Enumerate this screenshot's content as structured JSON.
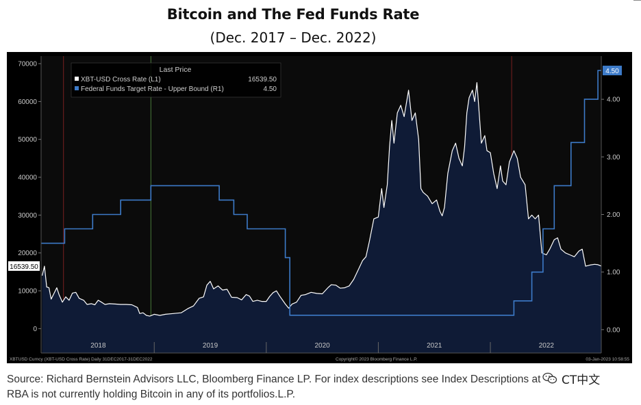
{
  "title": "Bitcoin and The Fed Funds Rate",
  "subtitle": "(Dec. 2017  –  Dec. 2022)",
  "source_text": "Source: Richard Bernstein Advisors LLC, Bloomberg Finance LP. For index descriptions see Index Descriptions at end of document. RBA is not currently holding Bitcoin in any of its portfolios.L.P.",
  "watermark_text": "CT中文",
  "colors": {
    "background": "#000000",
    "plot_bg": "#0b0b0b",
    "bitcoin_line": "#ffffff",
    "bitcoin_fill": "#0f1b36",
    "fed_line": "#3d7bc9",
    "axis_text": "#c8c8c8",
    "vline_red": "#7a2020",
    "vline_green": "#4a7a3a",
    "rlabel_bg": "#3d7bc9"
  },
  "chart_data": {
    "type": "line",
    "title": "Bitcoin and The Fed Funds Rate",
    "subtitle": "(Dec. 2017 – Dec. 2022)",
    "x_range": [
      2017.99,
      2022.99
    ],
    "x_tick_labels": [
      {
        "label": "2018",
        "x": 2018.5
      },
      {
        "label": "2019",
        "x": 2019.5
      },
      {
        "label": "2020",
        "x": 2020.5
      },
      {
        "label": "2021",
        "x": 2021.5
      },
      {
        "label": "2022",
        "x": 2022.5
      }
    ],
    "x_separators": [
      2019.0,
      2020.0,
      2021.0,
      2022.0
    ],
    "y_left": {
      "min": -3000,
      "max": 72000,
      "ticks": [
        0,
        10000,
        20000,
        30000,
        40000,
        50000,
        60000,
        70000
      ]
    },
    "y_right": {
      "min": -0.18,
      "max": 4.75,
      "ticks": [
        "0.00",
        "1.00",
        "2.00",
        "3.00",
        "4.00"
      ]
    },
    "legend": {
      "title": "Last Price",
      "entries": [
        {
          "name": "XBT-USD Cross Rate  (L1)",
          "value": "16539.50",
          "color": "#ffffff"
        },
        {
          "name": "Federal Funds Target Rate - Upper Bound  (R1)",
          "value": "4.50",
          "color": "#3d7bc9"
        }
      ]
    },
    "last_label_left": "16539.50",
    "last_label_right": "4.50",
    "series": [
      {
        "name": "XBT-USD Cross Rate (L1)",
        "axis": "left",
        "style": "area",
        "points": [
          [
            2018.0,
            14000
          ],
          [
            2018.02,
            16500
          ],
          [
            2018.04,
            11000
          ],
          [
            2018.06,
            10800
          ],
          [
            2018.08,
            7800
          ],
          [
            2018.1,
            9000
          ],
          [
            2018.13,
            10800
          ],
          [
            2018.15,
            9000
          ],
          [
            2018.18,
            7000
          ],
          [
            2018.21,
            8400
          ],
          [
            2018.24,
            7500
          ],
          [
            2018.27,
            9400
          ],
          [
            2018.3,
            9600
          ],
          [
            2018.33,
            8000
          ],
          [
            2018.37,
            7500
          ],
          [
            2018.4,
            6400
          ],
          [
            2018.44,
            6600
          ],
          [
            2018.47,
            6300
          ],
          [
            2018.5,
            7500
          ],
          [
            2018.53,
            7000
          ],
          [
            2018.56,
            6400
          ],
          [
            2018.6,
            6600
          ],
          [
            2018.65,
            6500
          ],
          [
            2018.7,
            6400
          ],
          [
            2018.75,
            6400
          ],
          [
            2018.8,
            6300
          ],
          [
            2018.85,
            5600
          ],
          [
            2018.87,
            4000
          ],
          [
            2018.9,
            4200
          ],
          [
            2018.93,
            3500
          ],
          [
            2018.96,
            3300
          ],
          [
            2019.0,
            3800
          ],
          [
            2019.05,
            3500
          ],
          [
            2019.1,
            3800
          ],
          [
            2019.17,
            4000
          ],
          [
            2019.24,
            4200
          ],
          [
            2019.3,
            5300
          ],
          [
            2019.35,
            6000
          ],
          [
            2019.4,
            8000
          ],
          [
            2019.44,
            8400
          ],
          [
            2019.47,
            11500
          ],
          [
            2019.5,
            12500
          ],
          [
            2019.53,
            10500
          ],
          [
            2019.57,
            11300
          ],
          [
            2019.61,
            10200
          ],
          [
            2019.65,
            10400
          ],
          [
            2019.69,
            8300
          ],
          [
            2019.74,
            8200
          ],
          [
            2019.78,
            7600
          ],
          [
            2019.82,
            9000
          ],
          [
            2019.85,
            8600
          ],
          [
            2019.88,
            7200
          ],
          [
            2019.92,
            7500
          ],
          [
            2019.96,
            7200
          ],
          [
            2020.0,
            7200
          ],
          [
            2020.03,
            8500
          ],
          [
            2020.06,
            9500
          ],
          [
            2020.09,
            10000
          ],
          [
            2020.12,
            8600
          ],
          [
            2020.17,
            6500
          ],
          [
            2020.2,
            5400
          ],
          [
            2020.23,
            6500
          ],
          [
            2020.27,
            7000
          ],
          [
            2020.31,
            8800
          ],
          [
            2020.35,
            9000
          ],
          [
            2020.4,
            9600
          ],
          [
            2020.45,
            9300
          ],
          [
            2020.5,
            9200
          ],
          [
            2020.55,
            10800
          ],
          [
            2020.58,
            11600
          ],
          [
            2020.62,
            11500
          ],
          [
            2020.66,
            10700
          ],
          [
            2020.7,
            10800
          ],
          [
            2020.74,
            11300
          ],
          [
            2020.78,
            13000
          ],
          [
            2020.82,
            15500
          ],
          [
            2020.86,
            18000
          ],
          [
            2020.89,
            19000
          ],
          [
            2020.92,
            23000
          ],
          [
            2020.96,
            29000
          ],
          [
            2021.0,
            29500
          ],
          [
            2021.03,
            37000
          ],
          [
            2021.05,
            32000
          ],
          [
            2021.08,
            38000
          ],
          [
            2021.1,
            48000
          ],
          [
            2021.12,
            55000
          ],
          [
            2021.14,
            49000
          ],
          [
            2021.17,
            57000
          ],
          [
            2021.2,
            59000
          ],
          [
            2021.23,
            56000
          ],
          [
            2021.27,
            63000
          ],
          [
            2021.3,
            55000
          ],
          [
            2021.33,
            57000
          ],
          [
            2021.36,
            50000
          ],
          [
            2021.38,
            37000
          ],
          [
            2021.4,
            36000
          ],
          [
            2021.44,
            35000
          ],
          [
            2021.48,
            33000
          ],
          [
            2021.52,
            34000
          ],
          [
            2021.55,
            31000
          ],
          [
            2021.57,
            29800
          ],
          [
            2021.59,
            32000
          ],
          [
            2021.62,
            41000
          ],
          [
            2021.66,
            47000
          ],
          [
            2021.69,
            49000
          ],
          [
            2021.72,
            45000
          ],
          [
            2021.75,
            43000
          ],
          [
            2021.77,
            48000
          ],
          [
            2021.79,
            57000
          ],
          [
            2021.81,
            61000
          ],
          [
            2021.84,
            63000
          ],
          [
            2021.86,
            60000
          ],
          [
            2021.88,
            65000
          ],
          [
            2021.9,
            57000
          ],
          [
            2021.92,
            49000
          ],
          [
            2021.95,
            51000
          ],
          [
            2021.97,
            47000
          ],
          [
            2022.0,
            46500
          ],
          [
            2022.03,
            41000
          ],
          [
            2022.06,
            37000
          ],
          [
            2022.09,
            43000
          ],
          [
            2022.11,
            39000
          ],
          [
            2022.14,
            38000
          ],
          [
            2022.17,
            44000
          ],
          [
            2022.21,
            47000
          ],
          [
            2022.24,
            45000
          ],
          [
            2022.27,
            40000
          ],
          [
            2022.31,
            38000
          ],
          [
            2022.34,
            29000
          ],
          [
            2022.37,
            30000
          ],
          [
            2022.4,
            29000
          ],
          [
            2022.43,
            30000
          ],
          [
            2022.46,
            20000
          ],
          [
            2022.5,
            19500
          ],
          [
            2022.53,
            21000
          ],
          [
            2022.57,
            23500
          ],
          [
            2022.6,
            24000
          ],
          [
            2022.63,
            21000
          ],
          [
            2022.67,
            20000
          ],
          [
            2022.71,
            19500
          ],
          [
            2022.75,
            19000
          ],
          [
            2022.79,
            20500
          ],
          [
            2022.82,
            21000
          ],
          [
            2022.85,
            16500
          ],
          [
            2022.89,
            16800
          ],
          [
            2022.93,
            17000
          ],
          [
            2022.96,
            16900
          ],
          [
            2022.99,
            16539.5
          ]
        ]
      },
      {
        "name": "Federal Funds Target Rate - Upper Bound (R1)",
        "axis": "right",
        "style": "step",
        "points": [
          [
            2017.99,
            1.5
          ],
          [
            2018.2,
            1.75
          ],
          [
            2018.45,
            2.0
          ],
          [
            2018.7,
            2.25
          ],
          [
            2018.97,
            2.5
          ],
          [
            2019.58,
            2.25
          ],
          [
            2019.71,
            2.0
          ],
          [
            2019.83,
            1.75
          ],
          [
            2020.17,
            1.25
          ],
          [
            2020.21,
            0.25
          ],
          [
            2022.21,
            0.5
          ],
          [
            2022.37,
            1.0
          ],
          [
            2022.47,
            1.75
          ],
          [
            2022.57,
            2.5
          ],
          [
            2022.72,
            3.25
          ],
          [
            2022.84,
            4.0
          ],
          [
            2022.96,
            4.5
          ],
          [
            2022.99,
            4.5
          ]
        ]
      }
    ],
    "vertical_markers": [
      {
        "x": 2018.19,
        "color": "red"
      },
      {
        "x": 2018.97,
        "color": "green"
      },
      {
        "x": 2022.19,
        "color": "red"
      }
    ],
    "footer_left": "XBTUSD Curncy (XBT-USD Cross Rate)  Daily 31DEC2017-31DEC2022",
    "footer_center": "Copyright© 2023 Bloomberg Finance L.P.",
    "footer_right": "03-Jan-2023 10:58:55"
  }
}
